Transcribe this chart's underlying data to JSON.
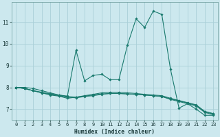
{
  "xlabel": "Humidex (Indice chaleur)",
  "bg_color": "#cce8ee",
  "line_color": "#1a7a6e",
  "grid_color": "#aacfd8",
  "xlim": [
    -0.5,
    23.5
  ],
  "ylim": [
    6.5,
    11.9
  ],
  "xticks": [
    0,
    1,
    2,
    3,
    4,
    5,
    6,
    7,
    8,
    9,
    10,
    11,
    12,
    13,
    14,
    15,
    16,
    17,
    18,
    19,
    20,
    21,
    22,
    23
  ],
  "yticks": [
    7,
    8,
    9,
    10,
    11
  ],
  "lines": [
    {
      "x": [
        0,
        1,
        2,
        3,
        4,
        5,
        6,
        7,
        8,
        9,
        10,
        11,
        12,
        13,
        14,
        15,
        16,
        17,
        18,
        19,
        20,
        21,
        22,
        23
      ],
      "y": [
        8.0,
        7.95,
        7.85,
        7.75,
        7.65,
        7.6,
        7.5,
        7.55,
        7.6,
        7.65,
        7.7,
        7.72,
        7.72,
        7.7,
        7.68,
        7.65,
        7.62,
        7.58,
        7.48,
        7.38,
        7.28,
        7.18,
        6.88,
        6.78
      ]
    },
    {
      "x": [
        0,
        1,
        2,
        3,
        4,
        5,
        6,
        7,
        8,
        9,
        10,
        11,
        12,
        13,
        14,
        15,
        16,
        17,
        18,
        19,
        20,
        21,
        22,
        23
      ],
      "y": [
        8.0,
        7.95,
        7.85,
        7.75,
        7.68,
        7.62,
        7.55,
        7.52,
        7.58,
        7.62,
        7.68,
        7.72,
        7.72,
        7.7,
        7.68,
        7.65,
        7.62,
        7.58,
        7.45,
        7.35,
        7.25,
        7.15,
        6.85,
        6.75
      ]
    },
    {
      "x": [
        0,
        1,
        2,
        3,
        4,
        5,
        6,
        7,
        8,
        9,
        10,
        11,
        12,
        13,
        14,
        15,
        16,
        17,
        18,
        19,
        20,
        21,
        22,
        23
      ],
      "y": [
        8.0,
        7.95,
        7.85,
        7.78,
        7.7,
        7.65,
        7.58,
        7.55,
        7.62,
        7.68,
        7.75,
        7.78,
        7.78,
        7.75,
        7.72,
        7.68,
        7.65,
        7.62,
        7.5,
        7.4,
        7.3,
        7.2,
        6.9,
        6.8
      ]
    },
    {
      "x": [
        0,
        1,
        2,
        3,
        4,
        5,
        6,
        7,
        8,
        9,
        10,
        11,
        12,
        13,
        14,
        15,
        16,
        17,
        18,
        19,
        20,
        21,
        22,
        23
      ],
      "y": [
        8.0,
        8.0,
        7.95,
        7.85,
        7.75,
        7.65,
        7.6,
        9.7,
        8.3,
        8.55,
        8.6,
        8.35,
        8.35,
        9.95,
        11.15,
        10.75,
        11.5,
        11.35,
        8.85,
        7.05,
        7.25,
        7.0,
        6.72,
        6.72
      ]
    }
  ]
}
